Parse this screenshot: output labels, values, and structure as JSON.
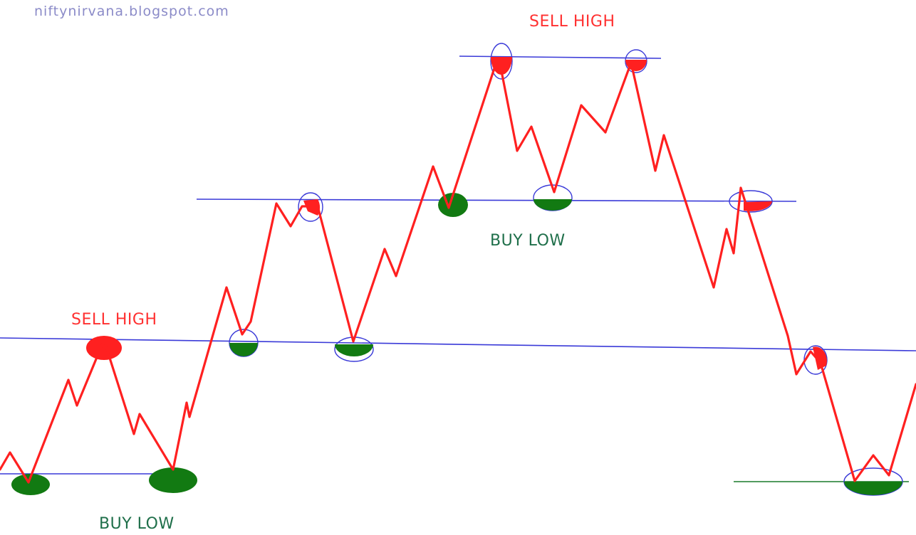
{
  "watermark": "niftynirvana.blogspot.com",
  "labels": {
    "sell_high_left": "SELL HIGH",
    "sell_high_top": "SELL HIGH",
    "buy_low_middle": "BUY LOW",
    "buy_low_bottom": "BUY LOW"
  },
  "colors": {
    "price_line": "#ff2020",
    "level_line": "#3a3ad8",
    "bottom_level_line": "#1a7a2a",
    "buy_marker": "#127a12",
    "sell_marker": "#ff2020",
    "sell_text": "#ff3030",
    "buy_text": "#1f6f4a",
    "watermark": "#8b8bc8"
  }
}
